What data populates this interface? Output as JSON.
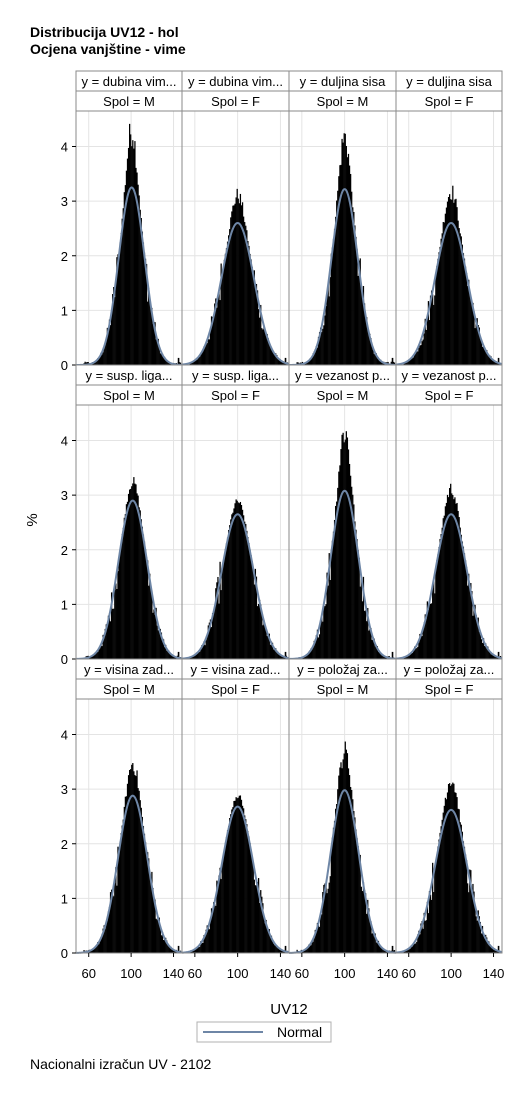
{
  "title": "Distribucija UV12 - hol",
  "subtitle": "Ocjena vanjštine - vime",
  "footer": "Nacionalni izračun UV - 2102",
  "chart_data": {
    "type": "histogram-panel",
    "xlabel": "UV12",
    "ylabel": "%",
    "xlim": [
      48,
      148
    ],
    "ylim": [
      0,
      4.65
    ],
    "xticks": [
      60,
      100,
      140
    ],
    "yticks": [
      0,
      1,
      2,
      3,
      4
    ],
    "grid": true,
    "legend": {
      "placement": "bottom",
      "entries": [
        {
          "label": "Normal",
          "color": "#6e86a6"
        }
      ]
    },
    "colors": {
      "bars": "#000000",
      "curve": "#6e86a6",
      "grid": "#e4e4e4",
      "frame": "#8a8a8a",
      "header_bg": "#ffffff"
    },
    "panels": [
      {
        "row": 0,
        "col": 0,
        "trait_label": "y = dubina vim...",
        "sex_label": "Spol = M",
        "mean": 100.5,
        "sd": 12.2,
        "peak_hist": 4.6,
        "peak_normal": 3.25
      },
      {
        "row": 0,
        "col": 1,
        "trait_label": "y = dubina vim...",
        "sex_label": "Spol = F",
        "mean": 100.0,
        "sd": 15.3,
        "peak_hist": 3.25,
        "peak_normal": 2.6
      },
      {
        "row": 0,
        "col": 2,
        "trait_label": "y = duljina sisa",
        "sex_label": "Spol = M",
        "mean": 100.0,
        "sd": 12.3,
        "peak_hist": 4.45,
        "peak_normal": 3.22
      },
      {
        "row": 0,
        "col": 3,
        "trait_label": "y = duljina sisa",
        "sex_label": "Spol = F",
        "mean": 100.0,
        "sd": 15.3,
        "peak_hist": 3.35,
        "peak_normal": 2.6
      },
      {
        "row": 1,
        "col": 0,
        "trait_label": "y = susp. liga...",
        "sex_label": "Spol = M",
        "mean": 101.5,
        "sd": 13.7,
        "peak_hist": 3.35,
        "peak_normal": 2.9
      },
      {
        "row": 1,
        "col": 1,
        "trait_label": "y = susp. liga...",
        "sex_label": "Spol = F",
        "mean": 100.0,
        "sd": 15.0,
        "peak_hist": 2.95,
        "peak_normal": 2.65
      },
      {
        "row": 1,
        "col": 2,
        "trait_label": "y = vezanost p...",
        "sex_label": "Spol = M",
        "mean": 100.0,
        "sd": 13.0,
        "peak_hist": 4.5,
        "peak_normal": 3.08
      },
      {
        "row": 1,
        "col": 3,
        "trait_label": "y = vezanost p...",
        "sex_label": "Spol = F",
        "mean": 100.0,
        "sd": 15.0,
        "peak_hist": 3.25,
        "peak_normal": 2.65
      },
      {
        "row": 2,
        "col": 0,
        "trait_label": "y = visina zad...",
        "sex_label": "Spol = M",
        "mean": 101.5,
        "sd": 13.8,
        "peak_hist": 3.65,
        "peak_normal": 2.88
      },
      {
        "row": 2,
        "col": 1,
        "trait_label": "y = visina zad...",
        "sex_label": "Spol = F",
        "mean": 100.0,
        "sd": 14.8,
        "peak_hist": 2.95,
        "peak_normal": 2.68
      },
      {
        "row": 2,
        "col": 2,
        "trait_label": "y = položaj za...",
        "sex_label": "Spol = M",
        "mean": 100.0,
        "sd": 13.3,
        "peak_hist": 3.9,
        "peak_normal": 2.98
      },
      {
        "row": 2,
        "col": 3,
        "trait_label": "y = položaj za...",
        "sex_label": "Spol = F",
        "mean": 100.0,
        "sd": 15.2,
        "peak_hist": 3.35,
        "peak_normal": 2.62
      }
    ]
  }
}
